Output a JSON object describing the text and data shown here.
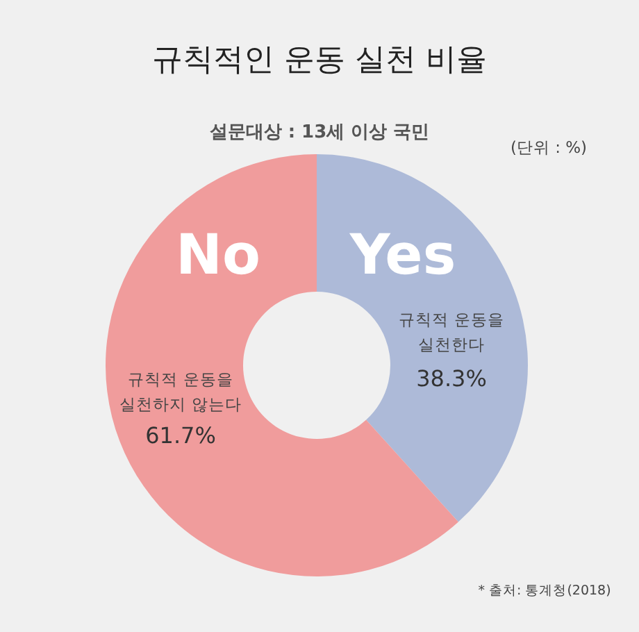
{
  "chart_data": {
    "type": "donut",
    "title": "규칙적인 운동 실천 비율",
    "subtitle": "설문대상 : 13세 이상 국민",
    "categories": [
      "Yes",
      "No"
    ],
    "values": [
      38.3,
      61.7
    ],
    "colors": [
      "#adbad8",
      "#f09c9c"
    ],
    "value_labels": [
      "38.3%",
      "61.7%"
    ],
    "annotations": [
      "규칙적 운동을\n실천한다",
      "규칙적 운동을\n실천하지 않는다",
      "(단위 : %)",
      "* 출처: 통계청(2018)"
    ],
    "legend": false
  }
}
